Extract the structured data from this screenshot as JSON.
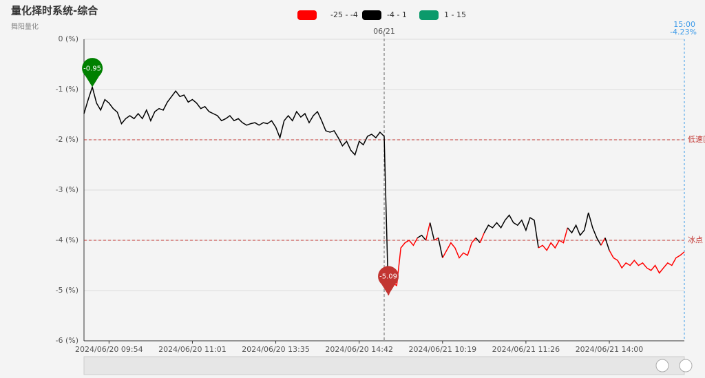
{
  "chart_data": {
    "type": "line",
    "title": "量化择时系统-综合",
    "subtitle": "舞阳量化",
    "pieces": [
      {
        "label": "-25 - -4",
        "min": -25,
        "max": -4,
        "color": "#ff0000"
      },
      {
        "label": "-4 - 1",
        "min": -4,
        "max": 1,
        "color": "#000000"
      },
      {
        "label": "1 - 15",
        "min": 1,
        "max": 15,
        "color": "#0b9a6b"
      }
    ],
    "categories": [
      null,
      null,
      null,
      null,
      null,
      null,
      "2024/06/20 09:54",
      null,
      null,
      null,
      null,
      null,
      null,
      null,
      null,
      null,
      null,
      null,
      null,
      null,
      null,
      null,
      null,
      null,
      null,
      null,
      "2024/06/20 11:01",
      null,
      null,
      null,
      null,
      null,
      null,
      null,
      null,
      null,
      null,
      null,
      null,
      null,
      null,
      null,
      null,
      null,
      null,
      null,
      "2024/06/20 13:35",
      null,
      null,
      null,
      null,
      null,
      null,
      null,
      null,
      null,
      null,
      null,
      null,
      null,
      null,
      null,
      null,
      null,
      null,
      null,
      "2024/06/20 14:42",
      null,
      null,
      null,
      null,
      null,
      null,
      null,
      null,
      null,
      null,
      null,
      null,
      null,
      null,
      null,
      null,
      null,
      null,
      null,
      "2024/06/21 10:19",
      null,
      null,
      null,
      null,
      null,
      null,
      null,
      null,
      null,
      null,
      null,
      null,
      null,
      null,
      null,
      null,
      null,
      null,
      null,
      "2024/06/21 11:26",
      null,
      null,
      null,
      null,
      null,
      null,
      null,
      null,
      null,
      null,
      null,
      null,
      null,
      null,
      null,
      null,
      null,
      null,
      null,
      "2024/06/21 14:00",
      null,
      null,
      null,
      null,
      null,
      null,
      null,
      null,
      null,
      null,
      null,
      null,
      null,
      null,
      null,
      null,
      null,
      null
    ],
    "values": [
      -1.48,
      -1.2,
      -0.95,
      -1.27,
      -1.41,
      -1.2,
      -1.27,
      -1.38,
      -1.45,
      -1.68,
      -1.58,
      -1.52,
      -1.58,
      -1.48,
      -1.58,
      -1.41,
      -1.62,
      -1.44,
      -1.38,
      -1.41,
      -1.25,
      -1.14,
      -1.03,
      -1.14,
      -1.11,
      -1.25,
      -1.2,
      -1.27,
      -1.38,
      -1.34,
      -1.44,
      -1.48,
      -1.52,
      -1.62,
      -1.58,
      -1.52,
      -1.62,
      -1.58,
      -1.66,
      -1.71,
      -1.68,
      -1.66,
      -1.71,
      -1.66,
      -1.68,
      -1.62,
      -1.75,
      -1.96,
      -1.62,
      -1.52,
      -1.62,
      -1.44,
      -1.55,
      -1.48,
      -1.66,
      -1.52,
      -1.44,
      -1.62,
      -1.82,
      -1.85,
      -1.82,
      -1.96,
      -2.12,
      -2.03,
      -2.21,
      -2.3,
      -2.03,
      -2.1,
      -1.93,
      -1.89,
      -1.96,
      -1.85,
      -1.93,
      -5.09,
      -4.85,
      -4.9,
      -4.15,
      -4.05,
      -4.0,
      -4.1,
      -3.95,
      -3.9,
      -4.0,
      -3.65,
      -4.0,
      -3.95,
      -4.35,
      -4.2,
      -4.05,
      -4.15,
      -4.35,
      -4.25,
      -4.3,
      -4.05,
      -3.95,
      -4.05,
      -3.85,
      -3.7,
      -3.75,
      -3.65,
      -3.75,
      -3.6,
      -3.5,
      -3.65,
      -3.7,
      -3.6,
      -3.8,
      -3.55,
      -3.6,
      -4.15,
      -4.1,
      -4.2,
      -4.05,
      -4.15,
      -4.0,
      -4.05,
      -3.75,
      -3.85,
      -3.7,
      -3.9,
      -3.8,
      -3.45,
      -3.75,
      -3.95,
      -4.1,
      -3.95,
      -4.2,
      -4.35,
      -4.4,
      -4.55,
      -4.45,
      -4.5,
      -4.4,
      -4.5,
      -4.45,
      -4.55,
      -4.6,
      -4.5,
      -4.65,
      -4.55,
      -4.45,
      -4.5,
      -4.35,
      -4.3,
      -4.23
    ],
    "ylim": [
      -6,
      0
    ],
    "yticks": [
      {
        "value": 0,
        "label": "0 (%)"
      },
      {
        "value": -1,
        "label": "-1 (%)"
      },
      {
        "value": -2,
        "label": "-2 (%)"
      },
      {
        "value": -3,
        "label": "-3 (%)"
      },
      {
        "value": -4,
        "label": "-4 (%)"
      },
      {
        "value": -5,
        "label": "-5 (%)"
      },
      {
        "value": -6,
        "label": "-6 (%)"
      }
    ],
    "grid": true,
    "mark_lines": [
      {
        "value": -2,
        "label": "低速区",
        "color": "#c23531"
      },
      {
        "value": -4,
        "label": "冰点",
        "color": "#c23531"
      }
    ],
    "mark_points": {
      "max": {
        "value": -0.95,
        "color": "#008000"
      },
      "min": {
        "value": -5.09,
        "color": "#c23531"
      }
    },
    "day_marker": {
      "index": 72,
      "label": "06/21"
    },
    "pointer": {
      "time": "15:00",
      "value_label": "-4.23%",
      "color": "#3d9be9"
    }
  }
}
